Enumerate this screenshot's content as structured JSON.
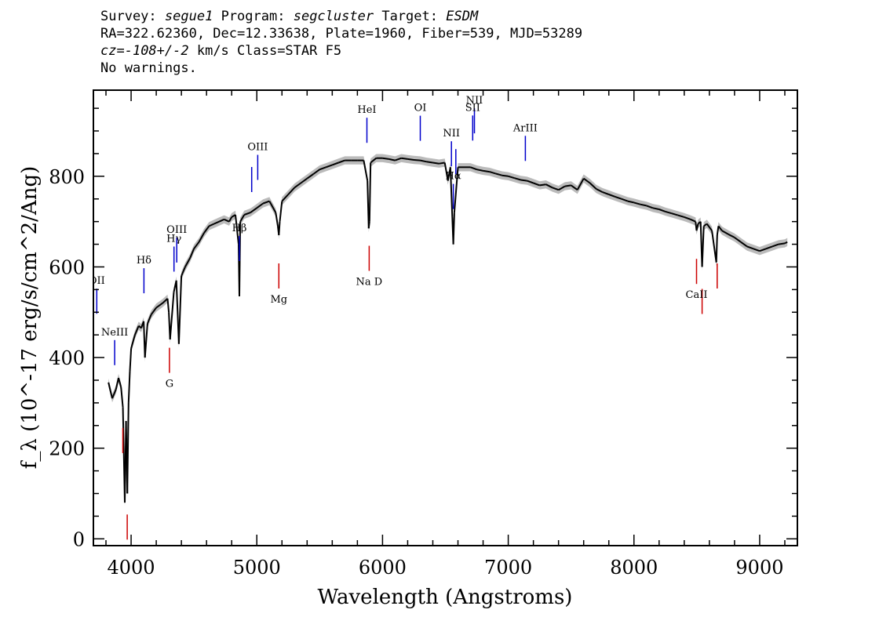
{
  "header": {
    "survey_label": "Survey:",
    "survey": "segue1",
    "program_label": "Program:",
    "program": "segcluster",
    "target_label": "Target:",
    "target": "ESDM",
    "line2": "RA=322.62360, Dec=12.33638, Plate=1960, Fiber=539, MJD=53289",
    "cz_label": "cz=",
    "cz_value": "-108+/-2",
    "cz_rest": " km/s Class=STAR F5",
    "line4": "No warnings."
  },
  "colors": {
    "spectrum": "#000000",
    "error_band": "#bbbbbb",
    "emission_line": "#0000cc",
    "absorption_line": "#cc0000"
  },
  "chart_data": {
    "type": "line",
    "title": "",
    "xlabel": "Wavelength (Angstroms)",
    "ylabel": "f_λ (10^-17 erg/s/cm^2/Ang)",
    "xlim": [
      3700,
      9300
    ],
    "ylim": [
      -15,
      990
    ],
    "x_ticks": [
      "4000",
      "5000",
      "6000",
      "7000",
      "8000",
      "9000"
    ],
    "y_ticks": [
      "0",
      "200",
      "400",
      "600",
      "800"
    ],
    "x_tick_values": [
      4000,
      5000,
      6000,
      7000,
      8000,
      9000
    ],
    "y_tick_values": [
      0,
      200,
      400,
      600,
      800
    ],
    "grid": false,
    "legend": "none",
    "series": [
      {
        "x": [
          3820,
          3850,
          3880,
          3900,
          3920,
          3935,
          3950,
          3960,
          3970,
          3980,
          3990,
          4000,
          4030,
          4060,
          4080,
          4100,
          4110,
          4130,
          4160,
          4200,
          4250,
          4290,
          4300,
          4310,
          4340,
          4360,
          4380,
          4400,
          4430,
          4470,
          4500,
          4540,
          4580,
          4620,
          4660,
          4700,
          4740,
          4780,
          4800,
          4830,
          4855,
          4861,
          4868,
          4900,
          4950,
          5000,
          5050,
          5100,
          5150,
          5167,
          5175,
          5183,
          5200,
          5250,
          5300,
          5350,
          5400,
          5450,
          5500,
          5550,
          5600,
          5650,
          5700,
          5750,
          5800,
          5850,
          5880,
          5890,
          5896,
          5905,
          5950,
          6000,
          6050,
          6100,
          6150,
          6200,
          6250,
          6300,
          6350,
          6400,
          6450,
          6495,
          6520,
          6540,
          6555,
          6563,
          6571,
          6600,
          6650,
          6700,
          6750,
          6800,
          6850,
          6900,
          6950,
          7000,
          7050,
          7100,
          7150,
          7200,
          7250,
          7300,
          7350,
          7400,
          7450,
          7500,
          7550,
          7600,
          7650,
          7700,
          7750,
          7800,
          7850,
          7900,
          7950,
          8000,
          8050,
          8100,
          8150,
          8200,
          8250,
          8300,
          8350,
          8400,
          8450,
          8490,
          8498,
          8510,
          8530,
          8542,
          8555,
          8580,
          8620,
          8655,
          8662,
          8672,
          8700,
          8750,
          8800,
          8850,
          8900,
          8950,
          9000,
          9050,
          9100,
          9150,
          9200,
          9220
        ],
        "y": [
          345,
          310,
          330,
          355,
          335,
          290,
          80,
          260,
          100,
          300,
          370,
          420,
          450,
          470,
          465,
          480,
          400,
          475,
          495,
          510,
          520,
          530,
          500,
          440,
          545,
          570,
          430,
          580,
          600,
          620,
          640,
          655,
          675,
          690,
          695,
          700,
          705,
          700,
          710,
          715,
          650,
          535,
          700,
          715,
          720,
          730,
          740,
          745,
          720,
          690,
          670,
          700,
          745,
          760,
          775,
          785,
          795,
          805,
          815,
          820,
          825,
          830,
          835,
          835,
          835,
          835,
          790,
          685,
          700,
          830,
          840,
          840,
          838,
          835,
          840,
          838,
          836,
          835,
          832,
          830,
          828,
          830,
          790,
          820,
          710,
          650,
          720,
          820,
          820,
          820,
          815,
          812,
          810,
          806,
          802,
          800,
          796,
          792,
          790,
          785,
          780,
          782,
          775,
          770,
          778,
          780,
          770,
          795,
          785,
          772,
          765,
          760,
          755,
          750,
          745,
          742,
          738,
          735,
          730,
          727,
          722,
          718,
          714,
          710,
          705,
          700,
          680,
          695,
          700,
          600,
          690,
          695,
          680,
          610,
          670,
          690,
          680,
          672,
          665,
          655,
          645,
          640,
          635,
          640,
          645,
          650,
          652,
          655
        ]
      }
    ],
    "annotations": [
      {
        "label": "OII",
        "x": 3727,
        "kind": "emission"
      },
      {
        "label": "NeIII",
        "x": 3869,
        "kind": "emission"
      },
      {
        "label": "Hδ",
        "x": 4102,
        "kind": "emission"
      },
      {
        "label": "Hγ",
        "x": 4341,
        "kind": "emission"
      },
      {
        "label": "OIII",
        "x": 4363,
        "kind": "emission"
      },
      {
        "label": "Hβ",
        "x": 4861,
        "kind": "emission"
      },
      {
        "label": "OIII",
        "x": 4959,
        "kind": "emission",
        "unlabeled": true
      },
      {
        "label": "OIII",
        "x": 5007,
        "kind": "emission"
      },
      {
        "label": "HeI",
        "x": 5876,
        "kind": "emission"
      },
      {
        "label": "OI",
        "x": 6300,
        "kind": "emission"
      },
      {
        "label": "NII",
        "x": 6548,
        "kind": "emission"
      },
      {
        "label": "Hα",
        "x": 6563,
        "kind": "emission"
      },
      {
        "label": "NII",
        "x": 6583,
        "kind": "emission",
        "unlabeled": true
      },
      {
        "label": "SII",
        "x": 6717,
        "kind": "emission"
      },
      {
        "label": "NII",
        "x": 6731,
        "kind": "emission"
      },
      {
        "label": "ArIII",
        "x": 7136,
        "kind": "emission"
      },
      {
        "label": "",
        "x": 3934,
        "kind": "absorption"
      },
      {
        "label": "",
        "x": 3969,
        "kind": "absorption"
      },
      {
        "label": "G",
        "x": 4305,
        "kind": "absorption"
      },
      {
        "label": "Mg",
        "x": 5175,
        "kind": "absorption"
      },
      {
        "label": "Na D",
        "x": 5894,
        "kind": "absorption"
      },
      {
        "label": "CaII",
        "x": 8498,
        "kind": "absorption"
      },
      {
        "label": "",
        "x": 8542,
        "kind": "absorption"
      },
      {
        "label": "",
        "x": 8662,
        "kind": "absorption"
      }
    ]
  }
}
